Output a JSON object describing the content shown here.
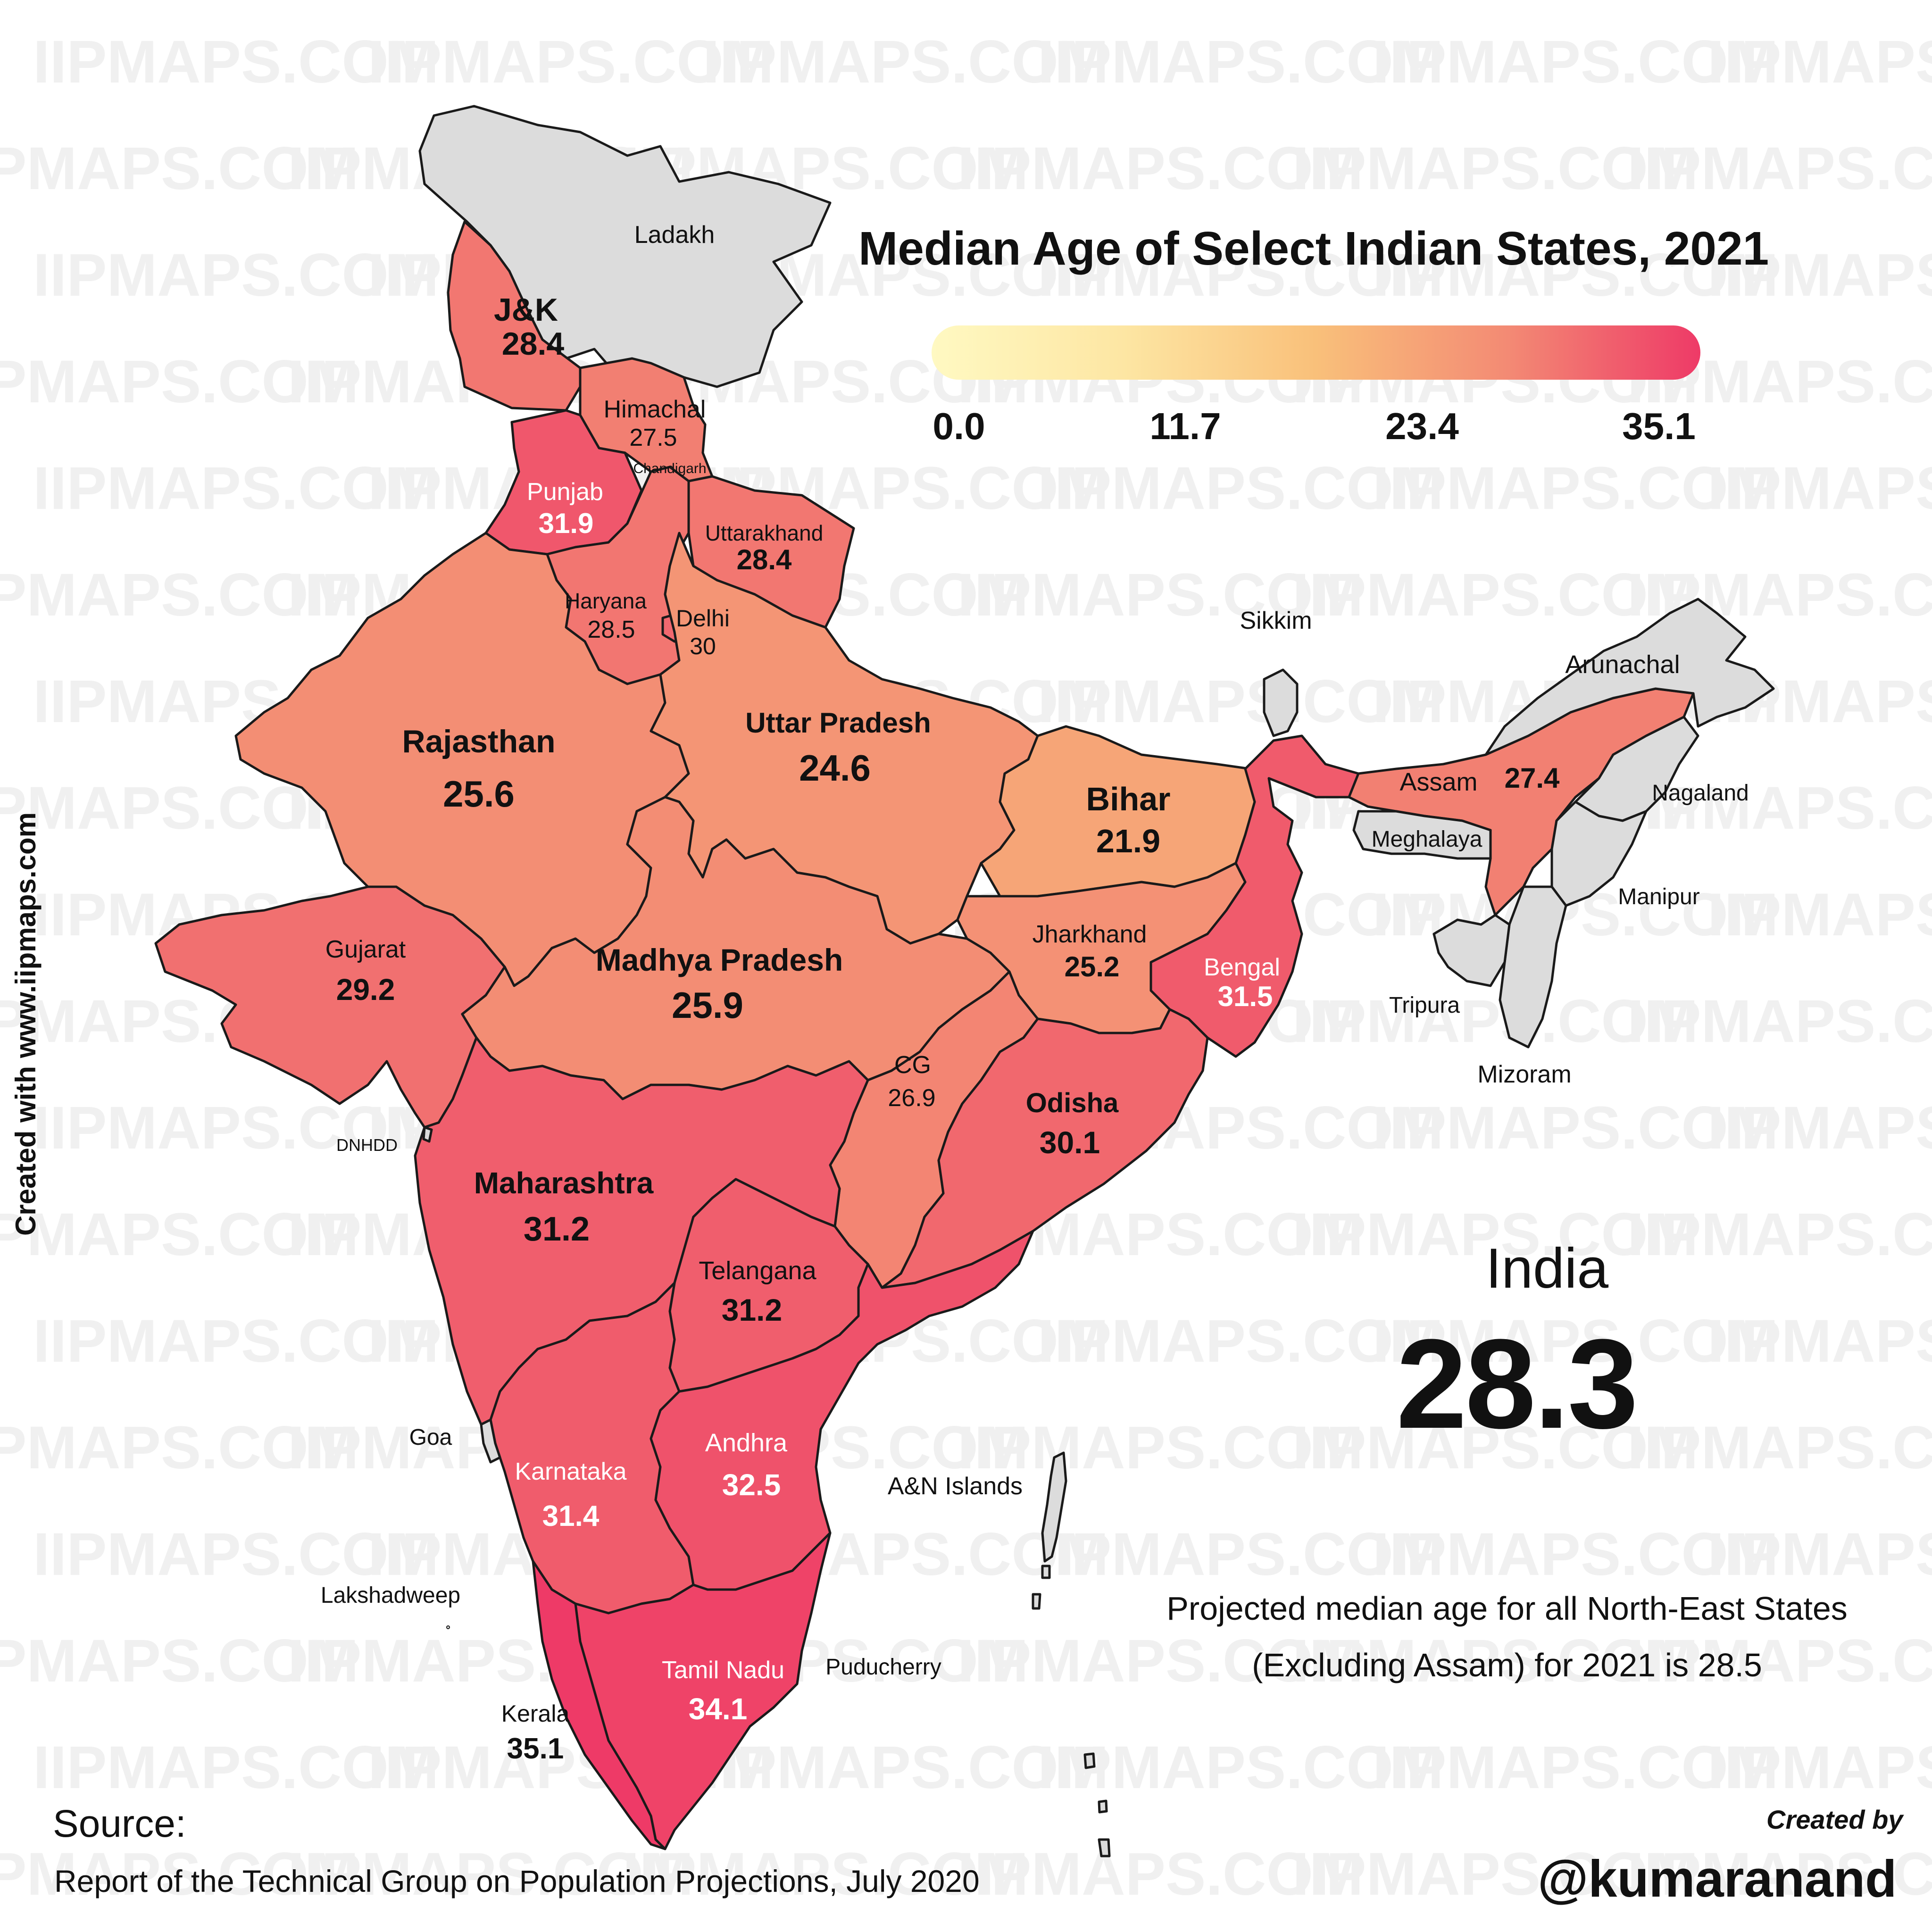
{
  "watermark": "IIPMAPS.COM",
  "title": "Median Age of Select Indian States, 2021",
  "legend": {
    "ticks": [
      "0.0",
      "11.7",
      "23.4",
      "35.1"
    ],
    "min": 0,
    "max": 35.1,
    "colors": [
      "#fff9c2",
      "#fde6a3",
      "#f9c07a",
      "#f38a74",
      "#ee3a67"
    ]
  },
  "national": {
    "label": "India",
    "value": "28.3"
  },
  "note": {
    "line1": "Projected median age for all North-East States",
    "line2": "(Excluding Assam) for 2021 is 28.5"
  },
  "source": {
    "heading": "Source:",
    "text": "Report of the Technical Group on Population Projections, July 2020"
  },
  "credit": {
    "created_by": "Created by",
    "author": "@kumaranand",
    "site": "Created with www.iipmaps.com"
  },
  "no_data_color": "#dcdcdc",
  "states": [
    {
      "id": "jk",
      "name": "J&K",
      "value": "28.4"
    },
    {
      "id": "himachal",
      "name": "Himachal",
      "value": "27.5"
    },
    {
      "id": "punjab",
      "name": "Punjab",
      "value": "31.9"
    },
    {
      "id": "uttarakhand",
      "name": "Uttarakhand",
      "value": "28.4"
    },
    {
      "id": "haryana",
      "name": "Haryana",
      "value": "28.5"
    },
    {
      "id": "delhi",
      "name": "Delhi",
      "value": "30"
    },
    {
      "id": "rajasthan",
      "name": "Rajasthan",
      "value": "25.6"
    },
    {
      "id": "up",
      "name": "Uttar Pradesh",
      "value": "24.6"
    },
    {
      "id": "bihar",
      "name": "Bihar",
      "value": "21.9"
    },
    {
      "id": "gujarat",
      "name": "Gujarat",
      "value": "29.2"
    },
    {
      "id": "mp",
      "name": "Madhya Pradesh",
      "value": "25.9"
    },
    {
      "id": "jharkhand",
      "name": "Jharkhand",
      "value": "25.2"
    },
    {
      "id": "bengal",
      "name": "Bengal",
      "value": "31.5"
    },
    {
      "id": "cg",
      "name": "CG",
      "value": "26.9"
    },
    {
      "id": "odisha",
      "name": "Odisha",
      "value": "30.1"
    },
    {
      "id": "maharashtra",
      "name": "Maharashtra",
      "value": "31.2"
    },
    {
      "id": "telangana",
      "name": "Telangana",
      "value": "31.2"
    },
    {
      "id": "karnataka",
      "name": "Karnataka",
      "value": "31.4"
    },
    {
      "id": "andhra",
      "name": "Andhra",
      "value": "32.5"
    },
    {
      "id": "tamilnadu",
      "name": "Tamil Nadu",
      "value": "34.1"
    },
    {
      "id": "kerala",
      "name": "Kerala",
      "value": "35.1"
    },
    {
      "id": "assam",
      "name": "Assam",
      "value": "27.4"
    }
  ],
  "no_data_regions": [
    "Ladakh",
    "Chandigarh",
    "Sikkim",
    "Arunachal",
    "Nagaland",
    "Meghalaya",
    "Manipur",
    "Tripura",
    "Mizoram",
    "DNHDD",
    "Goa",
    "Lakshadweep",
    "Puducherry",
    "A&N Islands"
  ]
}
